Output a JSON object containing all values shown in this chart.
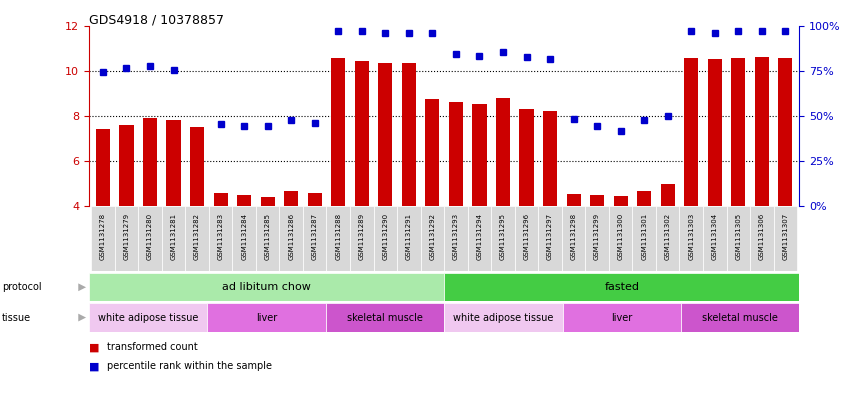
{
  "title": "GDS4918 / 10378857",
  "samples": [
    "GSM1131278",
    "GSM1131279",
    "GSM1131280",
    "GSM1131281",
    "GSM1131282",
    "GSM1131283",
    "GSM1131284",
    "GSM1131285",
    "GSM1131286",
    "GSM1131287",
    "GSM1131288",
    "GSM1131289",
    "GSM1131290",
    "GSM1131291",
    "GSM1131292",
    "GSM1131293",
    "GSM1131294",
    "GSM1131295",
    "GSM1131296",
    "GSM1131297",
    "GSM1131298",
    "GSM1131299",
    "GSM1131300",
    "GSM1131301",
    "GSM1131302",
    "GSM1131303",
    "GSM1131304",
    "GSM1131305",
    "GSM1131306",
    "GSM1131307"
  ],
  "bar_values": [
    7.4,
    7.6,
    7.9,
    7.8,
    7.5,
    4.6,
    4.5,
    4.4,
    4.7,
    4.6,
    10.55,
    10.45,
    10.35,
    10.35,
    8.75,
    8.6,
    8.55,
    8.8,
    8.3,
    8.2,
    4.55,
    4.5,
    4.45,
    4.7,
    5.0,
    10.55,
    10.5,
    10.55,
    10.6,
    10.55
  ],
  "dot_values_left_scale": [
    9.95,
    10.1,
    10.2,
    10.05,
    null,
    7.65,
    7.55,
    7.55,
    7.8,
    7.7,
    11.75,
    11.75,
    11.65,
    11.65,
    11.65,
    10.75,
    10.65,
    10.85,
    10.6,
    10.5,
    7.85,
    7.55,
    7.35,
    7.8,
    8.0,
    11.75,
    11.65,
    11.75,
    11.75,
    11.75
  ],
  "ylim_left": [
    4,
    12
  ],
  "ylim_right": [
    0,
    100
  ],
  "yticks_left": [
    4,
    6,
    8,
    10,
    12
  ],
  "yticks_right": [
    0,
    25,
    50,
    75,
    100
  ],
  "ytick_right_labels": [
    "0%",
    "25%",
    "50%",
    "75%",
    "100%"
  ],
  "bar_color": "#cc0000",
  "dot_color": "#0000cc",
  "plot_bg_color": "#ffffff",
  "fig_bg_color": "#ffffff",
  "tick_label_bg": "#d8d8d8",
  "gridline_color": "#000000",
  "gridlines_at": [
    6,
    8,
    10
  ],
  "protocol_groups": [
    {
      "label": "ad libitum chow",
      "start": 0,
      "end": 15,
      "color": "#aaeaaa"
    },
    {
      "label": "fasted",
      "start": 15,
      "end": 30,
      "color": "#44cc44"
    }
  ],
  "tissue_colors": {
    "white adipose tissue": "#f0c8f0",
    "liver": "#e070e0",
    "skeletal muscle": "#cc55cc"
  },
  "tissue_groups": [
    {
      "label": "white adipose tissue",
      "start": 0,
      "end": 5
    },
    {
      "label": "liver",
      "start": 5,
      "end": 10
    },
    {
      "label": "skeletal muscle",
      "start": 10,
      "end": 15
    },
    {
      "label": "white adipose tissue",
      "start": 15,
      "end": 20
    },
    {
      "label": "liver",
      "start": 20,
      "end": 25
    },
    {
      "label": "skeletal muscle",
      "start": 25,
      "end": 30
    }
  ],
  "legend_items": [
    {
      "label": "transformed count",
      "color": "#cc0000"
    },
    {
      "label": "percentile rank within the sample",
      "color": "#0000cc"
    }
  ],
  "protocol_label": "protocol",
  "tissue_label": "tissue",
  "arrow_color": "#aaaaaa"
}
